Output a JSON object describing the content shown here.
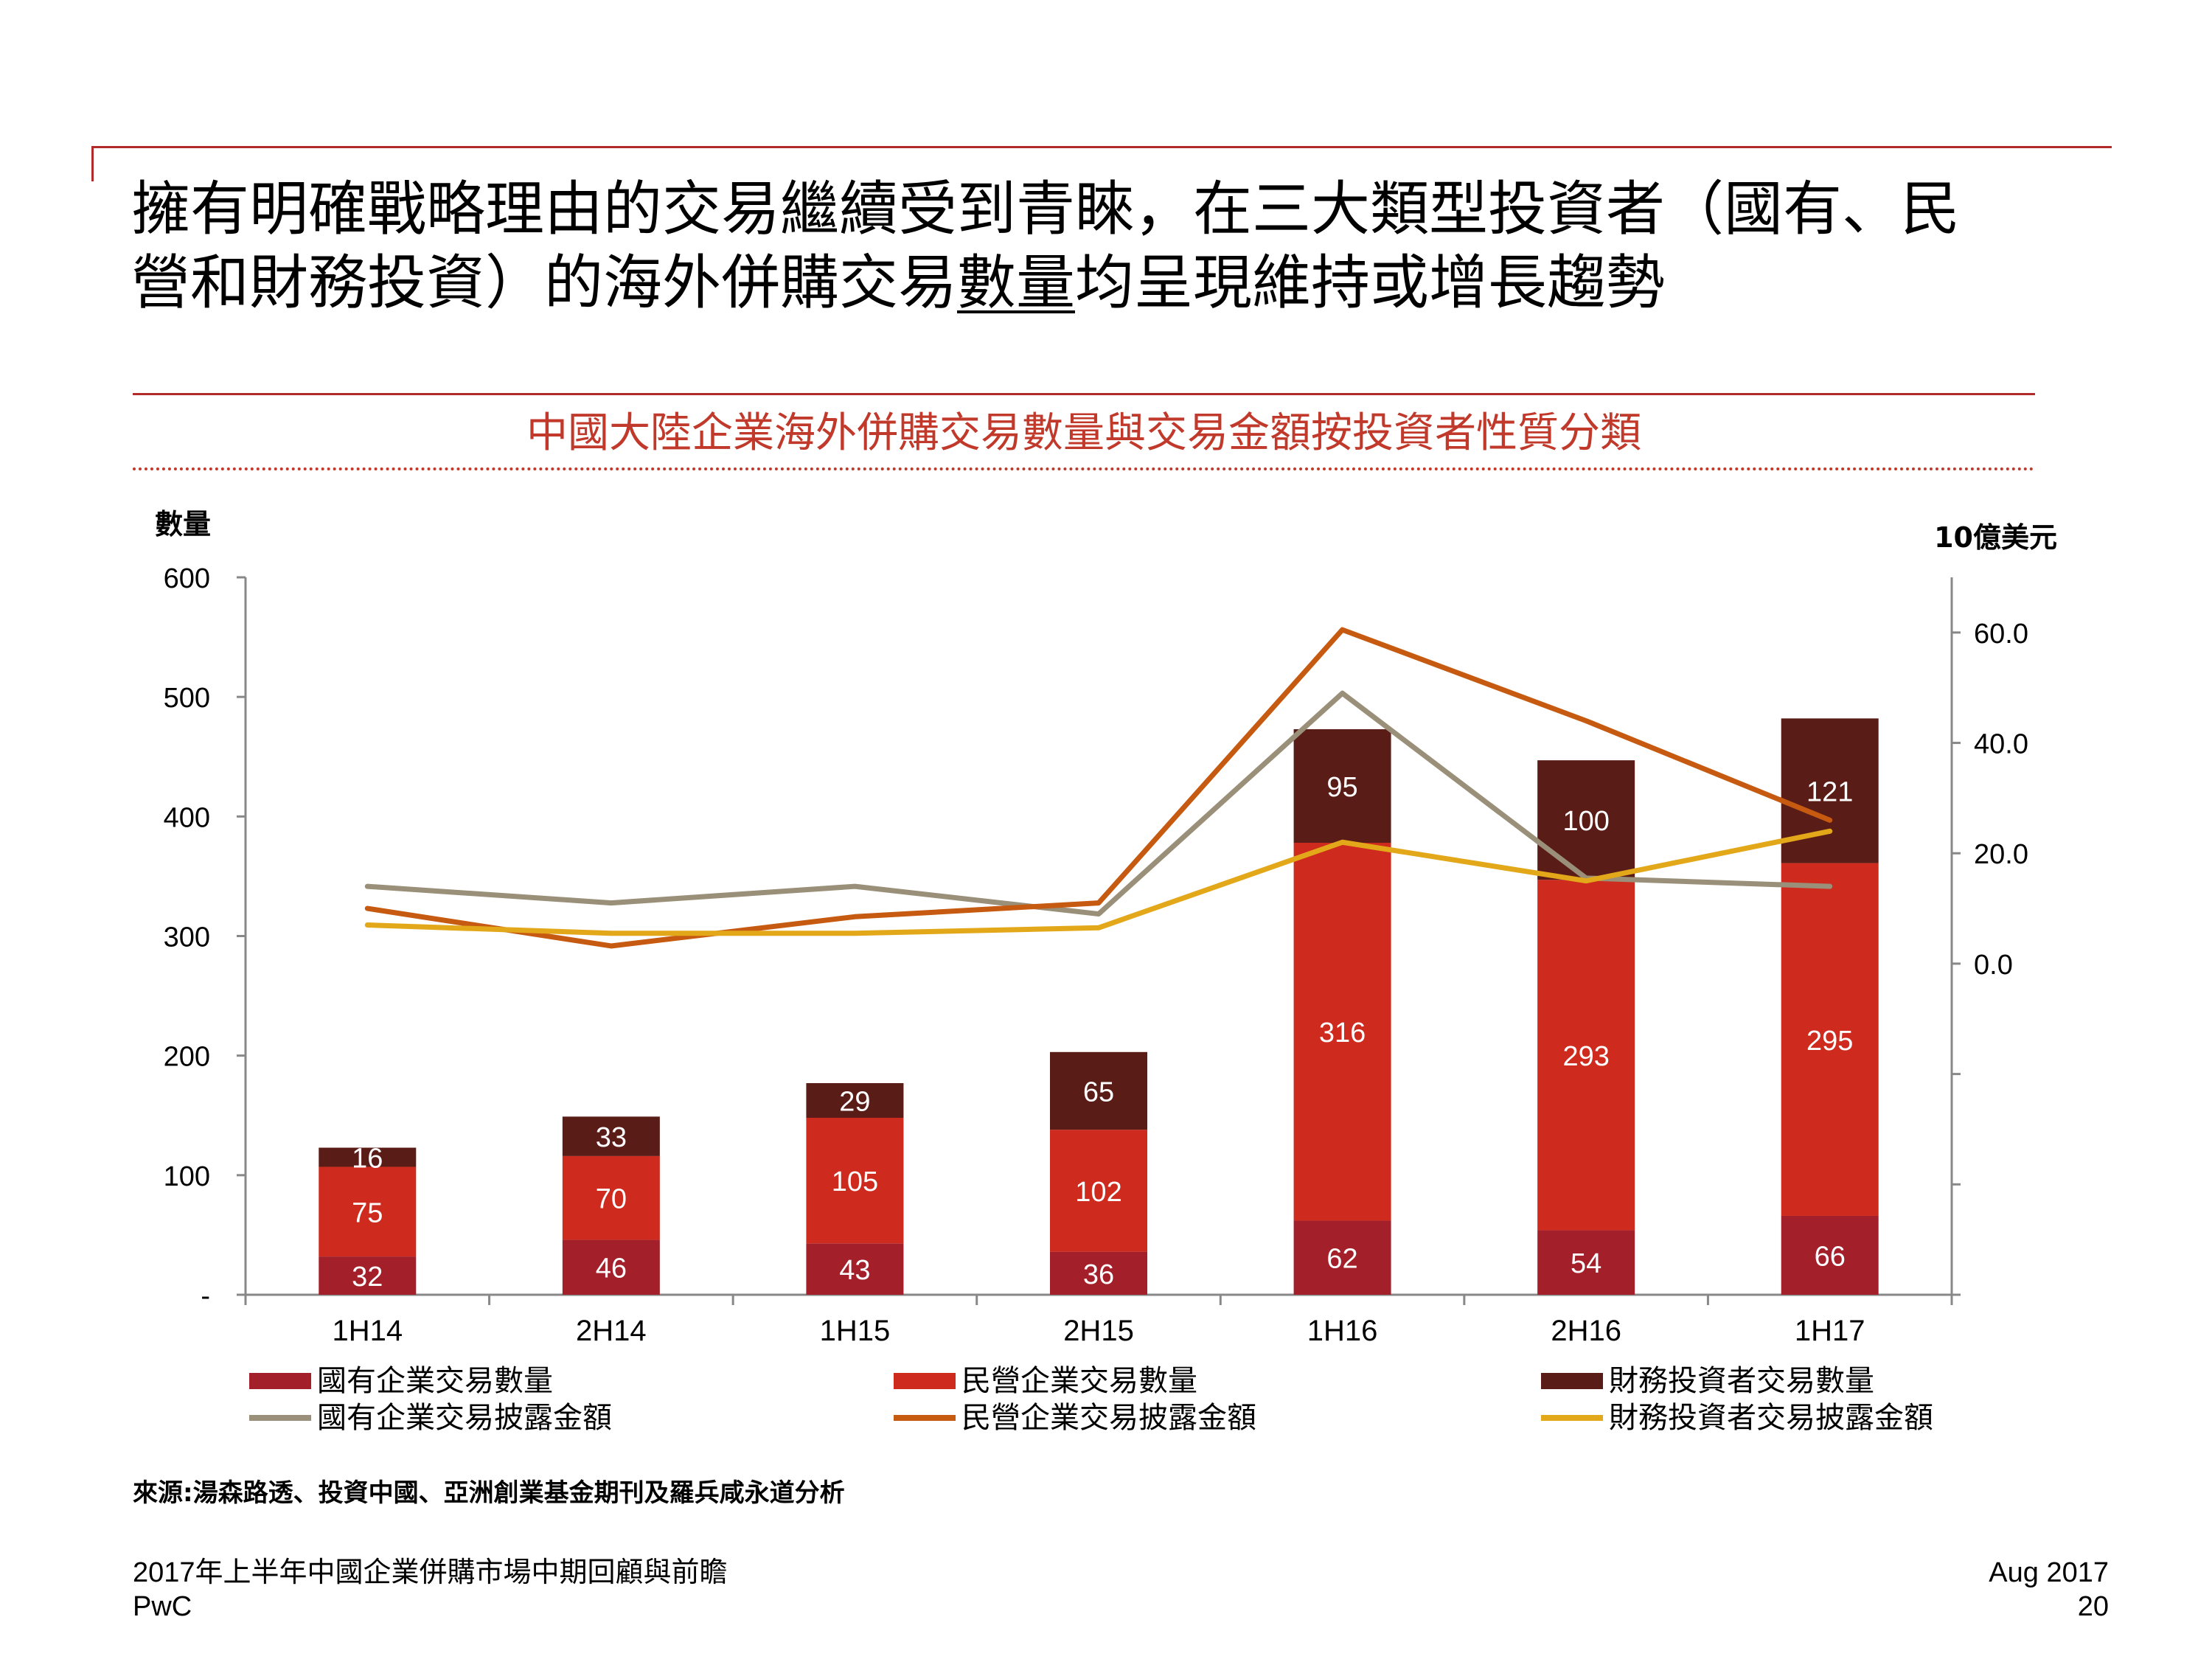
{
  "title": {
    "line1": "擁有明確戰略理由的交易繼續受到青睞，在三大類型投資者（國有、民",
    "line2_pre": "營和財務投資）的海外併購交易",
    "line2_underlined": "數量",
    "line2_post": "均呈現維持或增長趨勢"
  },
  "subtitle": "中國大陸企業海外併購交易數量與交易金額按投資者性質分類",
  "source": "來源:湯森路透、投資中國、亞洲創業基金期刊及羅兵咸永道分析",
  "footer": {
    "report_title": "2017年上半年中國企業併購市場中期回顧與前瞻",
    "company": "PwC",
    "date": "Aug 2017",
    "page_number": "20"
  },
  "colors": {
    "accent": "#b22b2b",
    "soe_bar": "#a3202b",
    "private_bar": "#cf2a1e",
    "financial_bar": "#5a1c17",
    "soe_line": "#9a8f78",
    "private_line": "#c65a10",
    "financial_line": "#e3a81a"
  },
  "chart_data": {
    "type": "bar",
    "stacked": true,
    "categories": [
      "1H14",
      "2H14",
      "1H15",
      "2H15",
      "1H16",
      "2H16",
      "1H17"
    ],
    "y_left": {
      "label": "數量",
      "range": [
        0,
        600
      ],
      "ticks": [
        0,
        100,
        200,
        300,
        400,
        500,
        600
      ],
      "tick_labels": [
        "-",
        "100",
        "200",
        "300",
        "400",
        "500",
        "600"
      ]
    },
    "y_right": {
      "label": "10億美元",
      "range": [
        -60,
        70
      ],
      "ticks": [
        0,
        20,
        40,
        60
      ],
      "tick_labels": [
        "0.0",
        "20.0",
        "40.0",
        "60.0"
      ]
    },
    "bar_series": [
      {
        "name": "國有企業交易數量",
        "color_key": "soe_bar",
        "values": [
          32,
          46,
          43,
          36,
          62,
          54,
          66
        ]
      },
      {
        "name": "民營企業交易數量",
        "color_key": "private_bar",
        "values": [
          75,
          70,
          105,
          102,
          316,
          293,
          295
        ]
      },
      {
        "name": "財務投資者交易數量",
        "color_key": "financial_bar",
        "values": [
          16,
          33,
          29,
          65,
          95,
          100,
          121
        ]
      }
    ],
    "line_series": [
      {
        "name": "國有企業交易披露金額",
        "color_key": "soe_line",
        "axis": "right",
        "values": [
          14.0,
          11.0,
          14.0,
          9.0,
          49.0,
          15.5,
          14.0
        ]
      },
      {
        "name": "民營企業交易披露金額",
        "color_key": "private_line",
        "axis": "right",
        "values": [
          10.0,
          3.2,
          8.5,
          11.0,
          60.5,
          44.0,
          26.0
        ]
      },
      {
        "name": "財務投資者交易披露金額",
        "color_key": "financial_line",
        "axis": "right",
        "values": [
          7.0,
          5.5,
          5.5,
          6.5,
          22.0,
          15.0,
          24.0
        ]
      }
    ]
  }
}
